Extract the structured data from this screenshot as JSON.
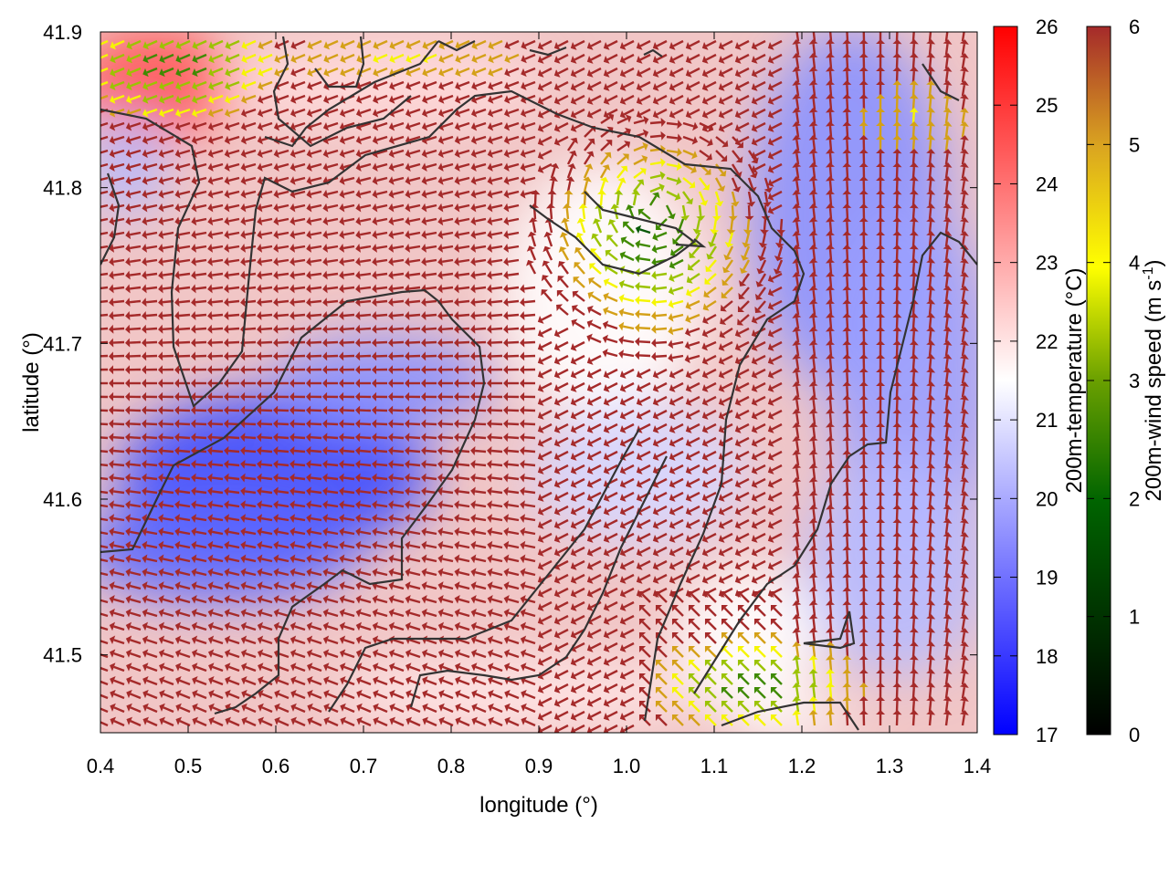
{
  "chart_data": {
    "type": "heatmap",
    "title": "",
    "xlabel": "longitude (°)",
    "ylabel": "latitude (°)",
    "xlim": [
      0.4,
      1.4
    ],
    "ylim": [
      41.45,
      41.9
    ],
    "x_ticks": [
      "0.4",
      "0.5",
      "0.6",
      "0.7",
      "0.8",
      "0.9",
      "1.0",
      "1.1",
      "1.2",
      "1.3",
      "1.4"
    ],
    "y_ticks": [
      "41.5",
      "41.6",
      "41.7",
      "41.8",
      "41.9"
    ],
    "overlays": [
      "wind-vector-arrows",
      "coastline-contours"
    ],
    "temperature_colorbar": {
      "label": "200m-temperature (°C)",
      "range": [
        17,
        26
      ],
      "ticks": [
        "17",
        "18",
        "19",
        "20",
        "21",
        "22",
        "23",
        "24",
        "25",
        "26"
      ],
      "colors": [
        "#0000ff",
        "#ffffff",
        "#ff0000"
      ]
    },
    "wind_colorbar": {
      "label": "200m-wind speed (m s",
      "label_sup": "-1",
      "label_end": ")",
      "range": [
        0,
        6
      ],
      "ticks": [
        "0",
        "1",
        "2",
        "3",
        "4",
        "5",
        "6"
      ],
      "colors": [
        "#000000",
        "#006400",
        "#6aa000",
        "#ffff00",
        "#daa520",
        "#a52a2a"
      ]
    }
  }
}
